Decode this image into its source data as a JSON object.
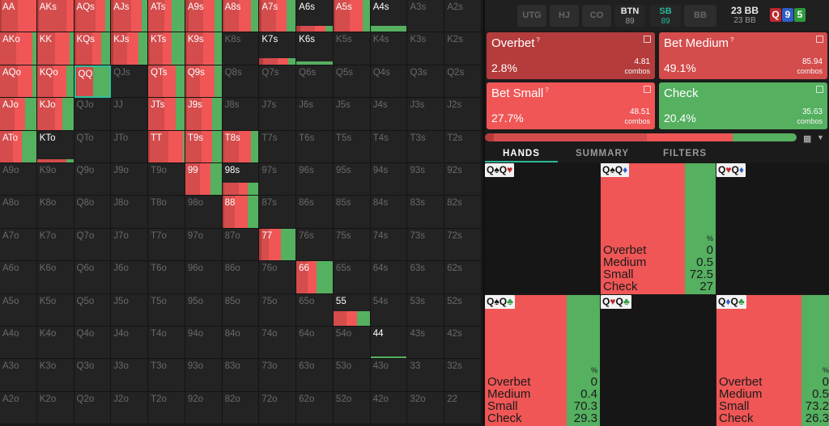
{
  "colors": {
    "red": "#f05656",
    "darkred": "#b53c3c",
    "green": "#55b060",
    "teal": "#2bb59a",
    "midred": "#d44c4c"
  },
  "grid": {
    "rows": [
      [
        "AA",
        "AKs",
        "AQs",
        "AJs",
        "ATs",
        "A9s",
        "A8s",
        "A7s",
        "A6s",
        "A5s",
        "A4s",
        "A3s",
        "A2s"
      ],
      [
        "AKo",
        "KK",
        "KQs",
        "KJs",
        "KTs",
        "K9s",
        "K8s",
        "K7s",
        "K6s",
        "K5s",
        "K4s",
        "K3s",
        "K2s"
      ],
      [
        "AQo",
        "KQo",
        "QQ",
        "QJs",
        "QTs",
        "Q9s",
        "Q8s",
        "Q7s",
        "Q6s",
        "Q5s",
        "Q4s",
        "Q3s",
        "Q2s"
      ],
      [
        "AJo",
        "KJo",
        "QJo",
        "JJ",
        "JTs",
        "J9s",
        "J8s",
        "J7s",
        "J6s",
        "J5s",
        "J4s",
        "J3s",
        "J2s"
      ],
      [
        "ATo",
        "KTo",
        "QTo",
        "JTo",
        "TT",
        "T9s",
        "T8s",
        "T7s",
        "T6s",
        "T5s",
        "T4s",
        "T3s",
        "T2s"
      ],
      [
        "A9o",
        "K9o",
        "Q9o",
        "J9o",
        "T9o",
        "99",
        "98s",
        "97s",
        "96s",
        "95s",
        "94s",
        "93s",
        "92s"
      ],
      [
        "A8o",
        "K8o",
        "Q8o",
        "J8o",
        "T8o",
        "98o",
        "88",
        "87s",
        "86s",
        "85s",
        "84s",
        "83s",
        "82s"
      ],
      [
        "A7o",
        "K7o",
        "Q7o",
        "J7o",
        "T7o",
        "97o",
        "87o",
        "77",
        "76s",
        "75s",
        "74s",
        "73s",
        "72s"
      ],
      [
        "A6o",
        "K6o",
        "Q6o",
        "J6o",
        "T6o",
        "96o",
        "86o",
        "76o",
        "66",
        "65s",
        "64s",
        "63s",
        "62s"
      ],
      [
        "A5o",
        "K5o",
        "Q5o",
        "J5o",
        "T5o",
        "95o",
        "85o",
        "75o",
        "65o",
        "55",
        "54s",
        "53s",
        "52s"
      ],
      [
        "A4o",
        "K4o",
        "Q4o",
        "J4o",
        "T4o",
        "94o",
        "84o",
        "74o",
        "64o",
        "54o",
        "44",
        "43s",
        "42s"
      ],
      [
        "A3o",
        "K3o",
        "Q3o",
        "J3o",
        "T3o",
        "93o",
        "83o",
        "73o",
        "63o",
        "53o",
        "43o",
        "33",
        "32s"
      ],
      [
        "A2o",
        "K2o",
        "Q2o",
        "J2o",
        "T2o",
        "92o",
        "82o",
        "72o",
        "62o",
        "52o",
        "42o",
        "32o",
        "22"
      ]
    ],
    "freq": {
      "AA": [
        1,
        [
          0.04,
          0.45,
          0.51,
          0
        ]
      ],
      "AKs": [
        1,
        [
          0.05,
          0.75,
          0.2,
          0
        ]
      ],
      "AQs": [
        1,
        [
          0.05,
          0.55,
          0.25,
          0.15
        ]
      ],
      "AJs": [
        1,
        [
          0.05,
          0.5,
          0.3,
          0.15
        ]
      ],
      "ATs": [
        1,
        [
          0,
          0.45,
          0.2,
          0.35
        ]
      ],
      "A9s": [
        1,
        [
          0.1,
          0.4,
          0.3,
          0.2
        ]
      ],
      "A8s": [
        1,
        [
          0.05,
          0.4,
          0.35,
          0.2
        ]
      ],
      "A7s": [
        1,
        [
          0.05,
          0.4,
          0.3,
          0.25
        ]
      ],
      "A6s": [
        0.2,
        [
          0.1,
          0.4,
          0.3,
          0.2
        ]
      ],
      "A5s": [
        1,
        [
          0.05,
          0.4,
          0.35,
          0.2
        ]
      ],
      "A4s": [
        0.2,
        [
          0,
          0,
          0,
          1
        ]
      ],
      "AKo": [
        1,
        [
          0,
          0.45,
          0.45,
          0.1
        ]
      ],
      "KK": [
        1,
        [
          0.02,
          0.48,
          0.4,
          0.1
        ]
      ],
      "KQs": [
        1,
        [
          0.05,
          0.45,
          0.25,
          0.25
        ]
      ],
      "KJs": [
        1,
        [
          0.05,
          0.4,
          0.3,
          0.25
        ]
      ],
      "KTs": [
        1,
        [
          0.05,
          0.35,
          0.25,
          0.35
        ]
      ],
      "K9s": [
        1,
        [
          0.05,
          0.45,
          0.3,
          0.2
        ]
      ],
      "K7s": [
        0.2,
        [
          0.1,
          0.4,
          0.3,
          0.2
        ]
      ],
      "K6s": [
        0.1,
        [
          0,
          0,
          0,
          1
        ]
      ],
      "AQo": [
        1,
        [
          0,
          0.5,
          0.4,
          0.1
        ]
      ],
      "KQo": [
        1,
        [
          0,
          0.45,
          0.35,
          0.2
        ]
      ],
      "QQ": [
        1,
        [
          0.03,
          0.49,
          0.0,
          0.48
        ]
      ],
      "QTs": [
        1,
        [
          0,
          0.4,
          0.35,
          0.25
        ]
      ],
      "Q9s": [
        1,
        [
          0.05,
          0.35,
          0.4,
          0.2
        ]
      ],
      "AJo": [
        1,
        [
          0,
          0.4,
          0.3,
          0.3
        ]
      ],
      "KJo": [
        1,
        [
          0,
          0.5,
          0.2,
          0.3
        ]
      ],
      "JTs": [
        1,
        [
          0,
          0.45,
          0.3,
          0.25
        ]
      ],
      "J9s": [
        1,
        [
          0.05,
          0.4,
          0.3,
          0.25
        ]
      ],
      "ATo": [
        1,
        [
          0,
          0.35,
          0.25,
          0.4
        ]
      ],
      "KTo": [
        0.1,
        [
          0,
          0.8,
          0,
          0.2
        ]
      ],
      "TT": [
        1,
        [
          0.05,
          0.5,
          0.4,
          0.05
        ]
      ],
      "T9s": [
        1,
        [
          0,
          0.45,
          0.3,
          0.25
        ]
      ],
      "T8s": [
        1,
        [
          0.05,
          0.4,
          0.35,
          0.2
        ]
      ],
      "99": [
        1,
        [
          0,
          0.4,
          0.3,
          0.3
        ]
      ],
      "98s": [
        0.4,
        [
          0.05,
          0.4,
          0.25,
          0.3
        ]
      ],
      "88": [
        1,
        [
          0.05,
          0.3,
          0.35,
          0.3
        ]
      ],
      "77": [
        1,
        [
          0.05,
          0.2,
          0.35,
          0.4
        ]
      ],
      "66": [
        1,
        [
          0,
          0.3,
          0.25,
          0.45
        ]
      ],
      "55": [
        0.45,
        [
          0,
          0.35,
          0.3,
          0.35
        ]
      ],
      "44": [
        0.05,
        [
          0,
          0,
          0,
          1
        ]
      ]
    },
    "selected": "QQ"
  },
  "positions": [
    {
      "name": "UTG",
      "stack": ""
    },
    {
      "name": "HJ",
      "stack": ""
    },
    {
      "name": "CO",
      "stack": ""
    },
    {
      "name": "BTN",
      "stack": "89"
    },
    {
      "name": "SB",
      "stack": "89"
    },
    {
      "name": "BB",
      "stack": ""
    }
  ],
  "pot": {
    "main": "23 BB",
    "sub": "23 BB"
  },
  "board": [
    {
      "rank": "Q",
      "color": "#c0272d"
    },
    {
      "rank": "9",
      "color": "#2e5fc8"
    },
    {
      "rank": "5",
      "color": "#2d9a3e"
    }
  ],
  "actions": [
    {
      "name": "Overbet",
      "pct": "2.8%",
      "combos": "4.81",
      "combos_label": "combos",
      "info": "?"
    },
    {
      "name": "Bet Medium",
      "pct": "49.1%",
      "combos": "85.94",
      "combos_label": "combos",
      "info": "?"
    },
    {
      "name": "Bet Small",
      "pct": "27.7%",
      "combos": "48.51",
      "combos_label": "combos",
      "info": "?"
    },
    {
      "name": "Check",
      "pct": "20.4%",
      "combos": "35.63",
      "combos_label": "combos",
      "info": ""
    }
  ],
  "freqbar": [
    0.028,
    0.491,
    0.277,
    0.204
  ],
  "tabs": [
    "HANDS",
    "SUMMARY",
    "FILTERS"
  ],
  "hands": [
    {
      "combo": "Q♠Q♥",
      "suits": [
        "#111",
        "#c0272d"
      ],
      "red": 0,
      "green": 0,
      "show": false,
      "pct_symbol": "",
      "rows": []
    },
    {
      "combo": "Q♠Q♦",
      "suits": [
        "#111",
        "#2e5fc8"
      ],
      "red": 0.73,
      "green": 0.27,
      "show": true,
      "pct_symbol": "%",
      "rows": [
        [
          "Overbet",
          "0"
        ],
        [
          "Medium",
          "0.5"
        ],
        [
          "Small",
          "72.5"
        ],
        [
          "Check",
          "27"
        ]
      ]
    },
    {
      "combo": "Q♥Q♦",
      "suits": [
        "#c0272d",
        "#2e5fc8"
      ],
      "red": 0,
      "green": 0,
      "show": false,
      "pct_symbol": "",
      "rows": []
    },
    {
      "combo": "Q♠Q♣",
      "suits": [
        "#111",
        "#2d9a3e"
      ],
      "red": 0.71,
      "green": 0.29,
      "show": true,
      "pct_symbol": "%",
      "rows": [
        [
          "Overbet",
          "0"
        ],
        [
          "Medium",
          "0.4"
        ],
        [
          "Small",
          "70.3"
        ],
        [
          "Check",
          "29.3"
        ]
      ]
    },
    {
      "combo": "Q♥Q♣",
      "suits": [
        "#c0272d",
        "#2d9a3e"
      ],
      "red": 0,
      "green": 0,
      "show": false,
      "pct_symbol": "",
      "rows": []
    },
    {
      "combo": "Q♦Q♣",
      "suits": [
        "#2e5fc8",
        "#2d9a3e"
      ],
      "red": 0.74,
      "green": 0.26,
      "show": true,
      "pct_symbol": "%",
      "rows": [
        [
          "Overbet",
          "0"
        ],
        [
          "Medium",
          "0.5"
        ],
        [
          "Small",
          "73.2"
        ],
        [
          "Check",
          "26.3"
        ]
      ]
    }
  ]
}
